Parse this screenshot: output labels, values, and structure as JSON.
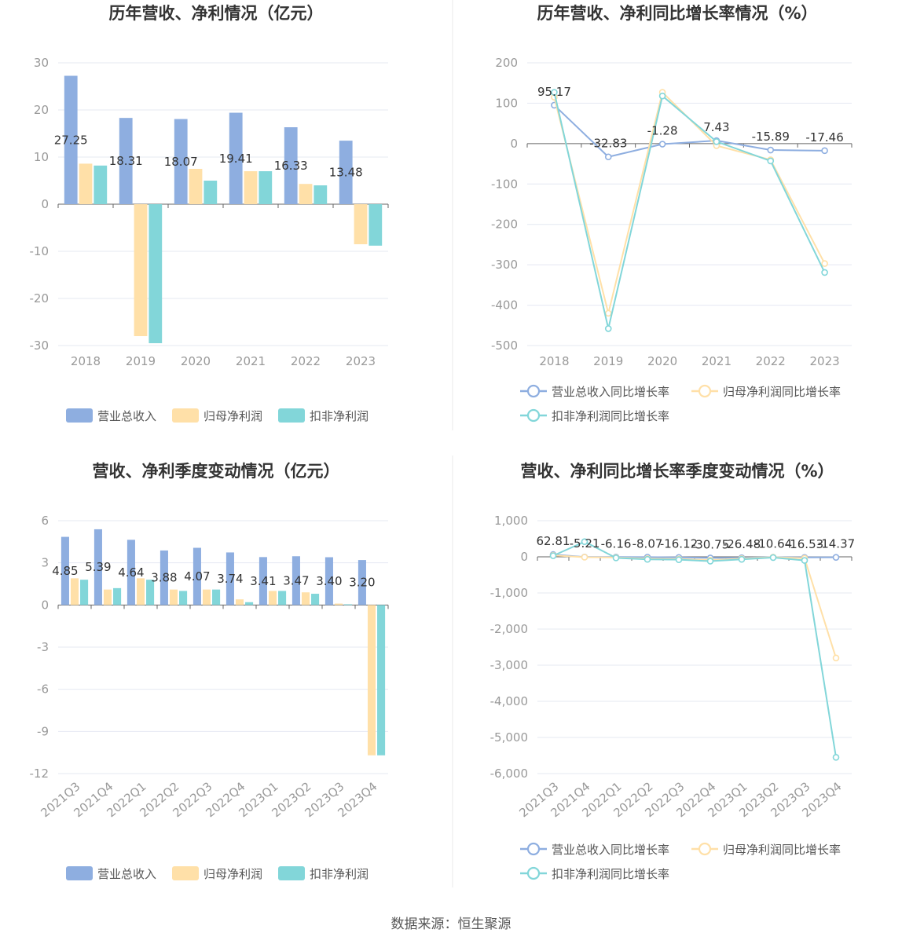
{
  "source_label": "数据来源：恒生聚源",
  "colors": {
    "revenue": "#8eaee0",
    "parent": "#ffe0a8",
    "deducted": "#82d6d9",
    "grid": "#e4e8f2",
    "axis": "#666666"
  },
  "chart_data": [
    {
      "type": "bar",
      "title": "历年营收、净利情况（亿元）",
      "categories": [
        "2018",
        "2019",
        "2020",
        "2021",
        "2022",
        "2023"
      ],
      "ylim": [
        -30,
        30
      ],
      "yticks": [
        30,
        20,
        10,
        0,
        -10,
        -20,
        -30
      ],
      "series": [
        {
          "name": "营业总收入",
          "values": [
            27.25,
            18.31,
            18.07,
            19.41,
            16.33,
            13.48
          ],
          "show_labels": true
        },
        {
          "name": "归母净利润",
          "values": [
            8.6,
            -28.0,
            7.5,
            7.0,
            4.3,
            -8.5
          ],
          "show_labels": false
        },
        {
          "name": "扣非净利润",
          "values": [
            8.2,
            -29.5,
            5.0,
            7.0,
            4.0,
            -8.8
          ],
          "show_labels": false
        }
      ],
      "legend": "bottom",
      "grid": true
    },
    {
      "type": "line",
      "title": "历年营收、净利同比增长率情况（%）",
      "categories": [
        "2018",
        "2019",
        "2020",
        "2021",
        "2022",
        "2023"
      ],
      "ylim": [
        -500,
        200
      ],
      "yticks": [
        200,
        100,
        0,
        -100,
        -200,
        -300,
        -400,
        -500
      ],
      "series": [
        {
          "name": "营业总收入同比增长率",
          "values": [
            95.17,
            -32.83,
            -1.28,
            7.43,
            -15.89,
            -17.46
          ],
          "show_labels": true
        },
        {
          "name": "归母净利润同比增长率",
          "values": [
            115,
            -420,
            127,
            -5,
            -40,
            -297
          ],
          "show_labels": false
        },
        {
          "name": "扣非净利润同比增长率",
          "values": [
            127,
            -458,
            118,
            5,
            -43,
            -319
          ],
          "show_labels": false
        }
      ],
      "legend": "bottom",
      "grid": true
    },
    {
      "type": "bar",
      "title": "营收、净利季度变动情况（亿元）",
      "categories": [
        "2021Q3",
        "2021Q4",
        "2022Q1",
        "2022Q2",
        "2022Q3",
        "2022Q4",
        "2023Q1",
        "2023Q2",
        "2023Q3",
        "2023Q4"
      ],
      "ylim": [
        -12,
        6
      ],
      "yticks": [
        6,
        3,
        0,
        -3,
        -6,
        -9,
        -12
      ],
      "series": [
        {
          "name": "营业总收入",
          "values": [
            4.85,
            5.39,
            4.64,
            3.88,
            4.07,
            3.74,
            3.41,
            3.47,
            3.4,
            3.2
          ],
          "show_labels": true
        },
        {
          "name": "归母净利润",
          "values": [
            1.9,
            1.1,
            1.9,
            1.1,
            1.1,
            0.4,
            1.0,
            0.9,
            0.1,
            -10.7
          ],
          "show_labels": false
        },
        {
          "name": "扣非净利润",
          "values": [
            1.8,
            1.2,
            1.8,
            1.0,
            1.1,
            0.2,
            1.0,
            0.8,
            0.05,
            -10.7
          ],
          "show_labels": false
        }
      ],
      "legend": "bottom",
      "grid": true
    },
    {
      "type": "line",
      "title": "营收、净利同比增长率季度变动情况（%）",
      "categories": [
        "2021Q3",
        "2021Q4",
        "2022Q1",
        "2022Q2",
        "2022Q3",
        "2022Q4",
        "2023Q1",
        "2023Q2",
        "2023Q3",
        "2023Q4"
      ],
      "ylim": [
        -6000,
        1000
      ],
      "yticks": [
        1000,
        0,
        -1000,
        -2000,
        -3000,
        -4000,
        -5000,
        -6000
      ],
      "ytick_labels": [
        "1,000",
        "0",
        "-1,000",
        "-2,000",
        "-3,000",
        "-4,000",
        "-5,000",
        "-6,000"
      ],
      "series": [
        {
          "name": "营业总收入同比增长率",
          "values": [
            62.81,
            -5.21,
            -6.16,
            -8.07,
            -16.12,
            -30.75,
            -26.48,
            -10.64,
            -16.53,
            -14.37
          ],
          "show_labels": true
        },
        {
          "name": "归母净利润同比增长率",
          "values": [
            40,
            -10,
            -20,
            -50,
            -60,
            -90,
            -50,
            -10,
            -40,
            -2800
          ],
          "show_labels": false
        },
        {
          "name": "扣非净利润同比增长率",
          "values": [
            30,
            420,
            -30,
            -70,
            -80,
            -120,
            -70,
            -20,
            -100,
            -5550
          ],
          "show_labels": false
        }
      ],
      "legend": "bottom",
      "grid": true
    }
  ]
}
